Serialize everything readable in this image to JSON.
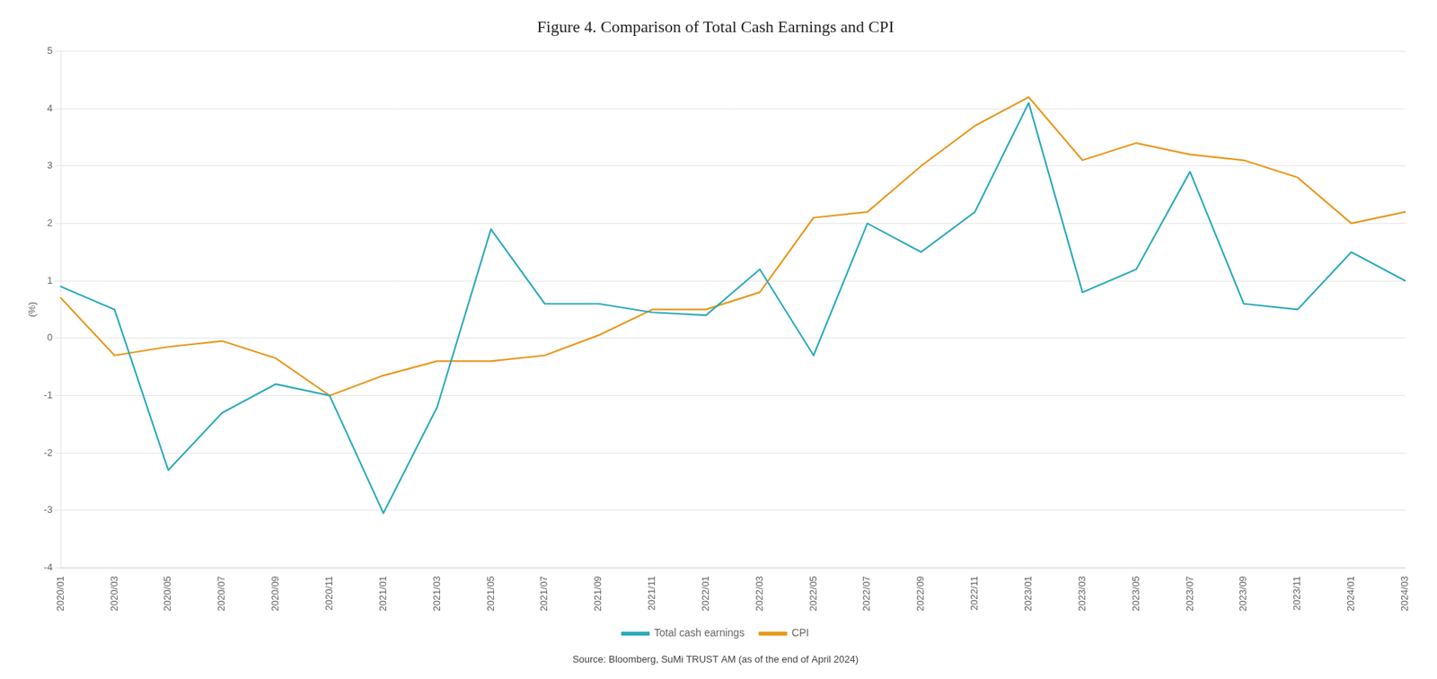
{
  "chart_data": {
    "type": "line",
    "title": "Figure 4. Comparison of Total Cash Earnings and CPI",
    "ylabel": "(%)",
    "annotations": [
      "Source: Bloomberg, SuMi TRUST AM (as of the end of April 2024)"
    ],
    "categories": [
      "2020/01",
      "2020/03",
      "2020/05",
      "2020/07",
      "2020/09",
      "2020/11",
      "2021/01",
      "2021/03",
      "2021/05",
      "2021/07",
      "2021/09",
      "2021/11",
      "2022/01",
      "2022/03",
      "2022/05",
      "2022/07",
      "2022/09",
      "2022/11",
      "2023/01",
      "2023/03",
      "2023/05",
      "2023/07",
      "2023/09",
      "2023/11",
      "2024/01",
      "2024/03"
    ],
    "series": [
      {
        "name": "Total cash earnings",
        "color": "#2aaabb",
        "values": [
          0.9,
          0.5,
          -2.3,
          -1.3,
          -0.8,
          -1.0,
          -3.05,
          -1.2,
          1.9,
          0.6,
          0.6,
          0.45,
          0.4,
          1.2,
          -0.3,
          2.0,
          1.5,
          2.2,
          4.1,
          0.8,
          1.2,
          2.9,
          0.6,
          0.5,
          1.5,
          1.0
        ]
      },
      {
        "name": "CPI",
        "color": "#E8971A",
        "values": [
          0.7,
          -0.3,
          -0.15,
          -0.05,
          -0.35,
          -1.0,
          -0.65,
          -0.4,
          -0.4,
          -0.3,
          0.05,
          0.5,
          0.5,
          0.8,
          2.1,
          2.2,
          3.0,
          3.7,
          4.2,
          3.1,
          3.4,
          3.2,
          3.1,
          2.8,
          2.0,
          2.2
        ]
      }
    ],
    "ylim": [
      -4,
      5
    ],
    "yticks": [
      -4,
      -3,
      -2,
      -1,
      0,
      1,
      2,
      3,
      4,
      5
    ],
    "grid": true,
    "legend": "bottom"
  }
}
